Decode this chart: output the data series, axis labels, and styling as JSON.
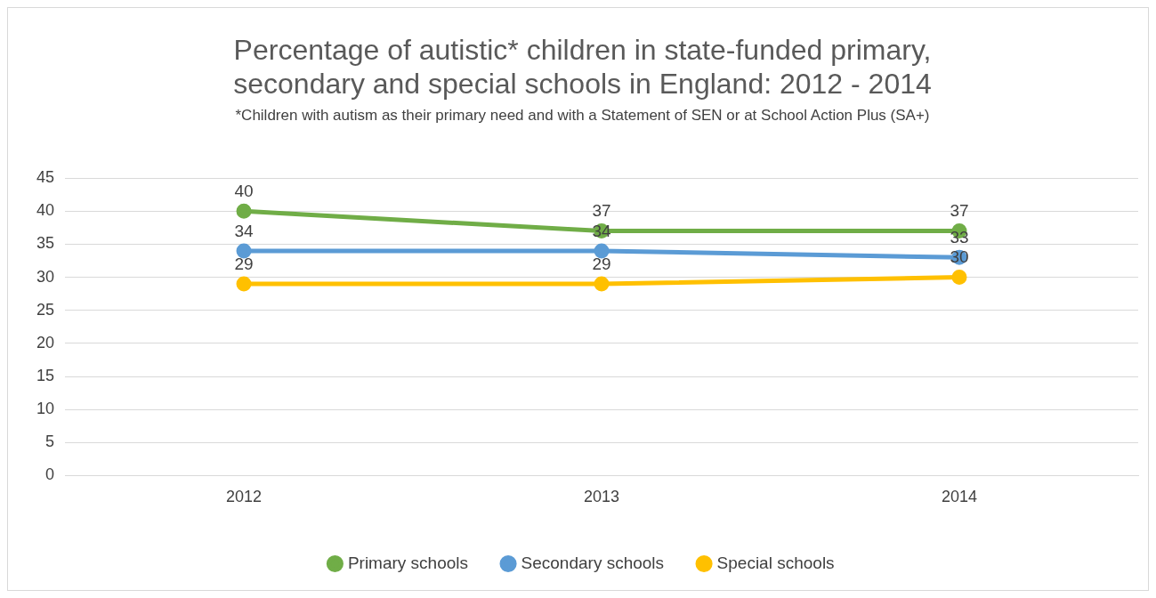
{
  "chart_data": {
    "type": "line",
    "title": "Percentage of autistic* children in state-funded primary, secondary and special schools in England: 2012 - 2014",
    "subtitle": "*Children with autism as their primary need and with a Statement of SEN or at School Action Plus (SA+)",
    "categories": [
      "2012",
      "2013",
      "2014"
    ],
    "series": [
      {
        "name": "Primary schools",
        "color": "#70ad47",
        "values": [
          40,
          37,
          37
        ]
      },
      {
        "name": "Secondary schools",
        "color": "#5b9bd5",
        "values": [
          34,
          34,
          33
        ]
      },
      {
        "name": "Special schools",
        "color": "#ffc000",
        "values": [
          29,
          29,
          30
        ]
      }
    ],
    "ylim": [
      0,
      45
    ],
    "yticks": [
      0,
      5,
      10,
      15,
      20,
      25,
      30,
      35,
      40,
      45
    ],
    "grid": "y",
    "legend": "bottom",
    "marker": "circle",
    "line_style": "solid",
    "data_labels": true
  }
}
